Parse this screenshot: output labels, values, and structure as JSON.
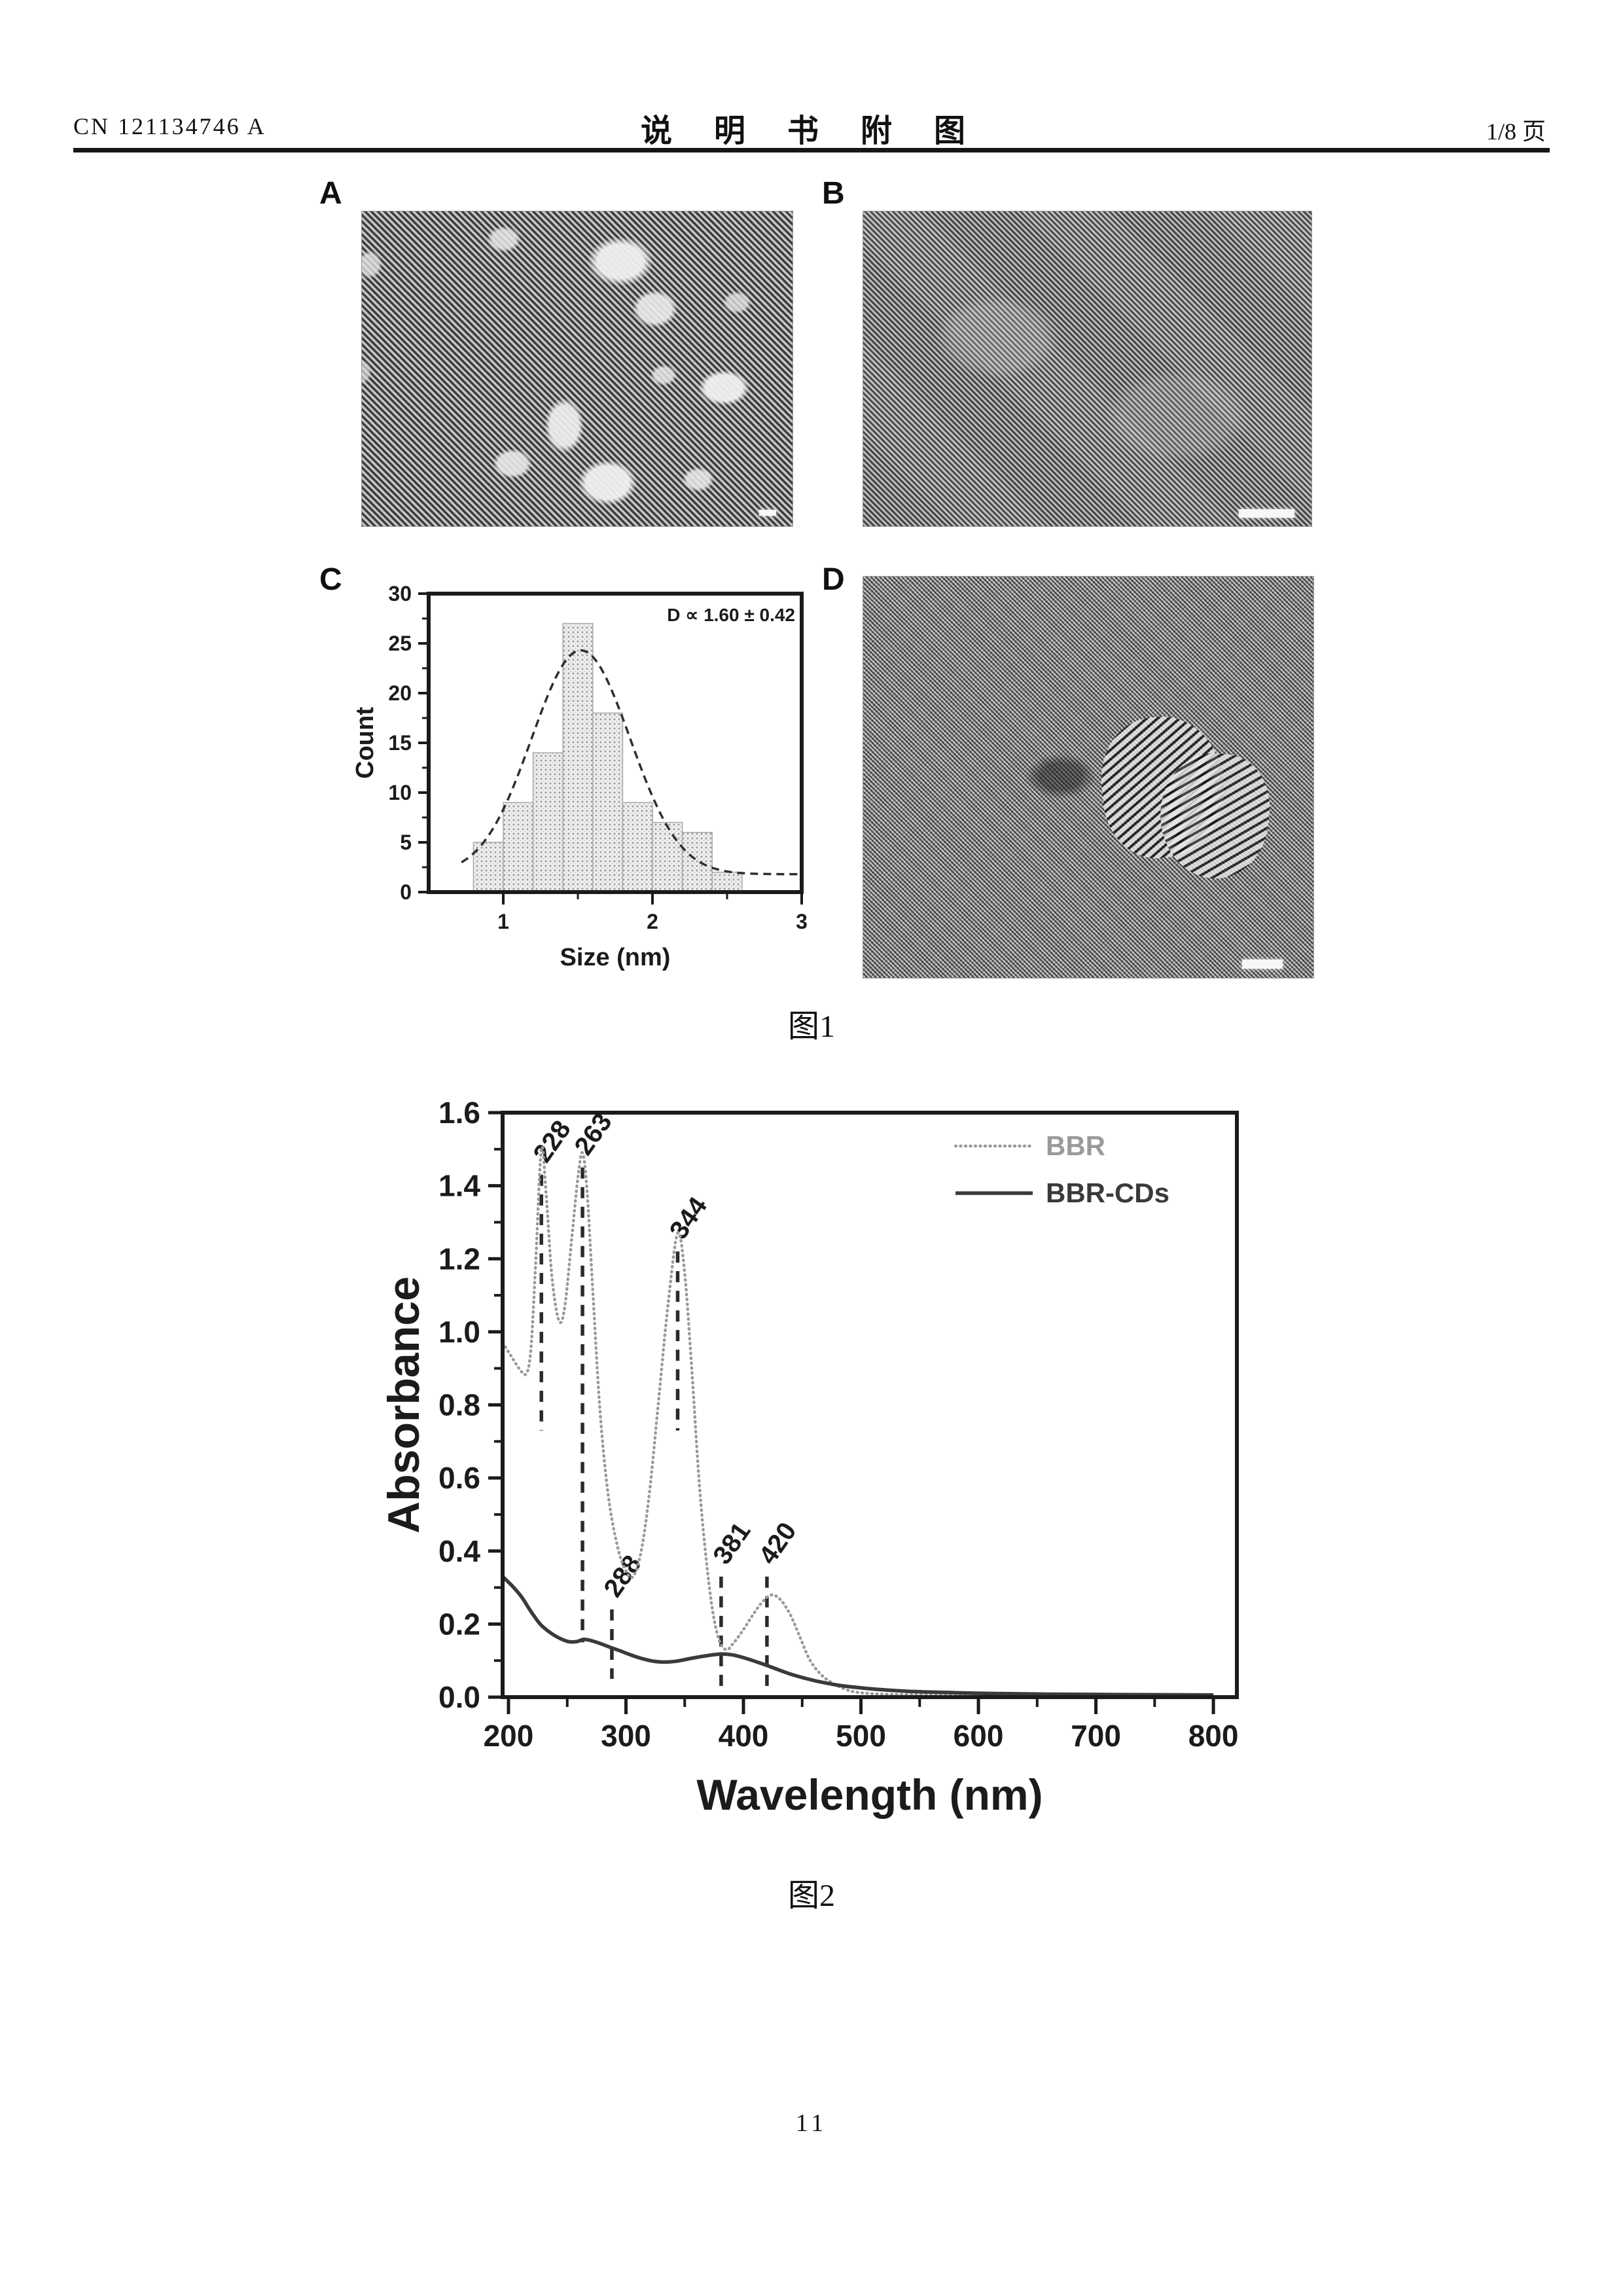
{
  "header": {
    "patent_number": "CN 121134746 A",
    "title": "说 明 书 附 图",
    "page_indicator": "1/8 页"
  },
  "figure1": {
    "caption": "图1",
    "panels": [
      {
        "label": "A"
      },
      {
        "label": "B"
      },
      {
        "label": "C"
      },
      {
        "label": "D"
      }
    ]
  },
  "figure2": {
    "caption": "图2"
  },
  "page_number": "11",
  "colors": {
    "ink": "#1b1b1b",
    "bbr_series": "#9a9a9a",
    "bbr_cds_series": "#3a3a3a",
    "bar_fill_bg": "#efefef",
    "bar_dot": "#9b9b9b"
  },
  "chart_data": [
    {
      "id": "size_histogram",
      "type": "bar",
      "title": "",
      "xlabel": "Size (nm)",
      "ylabel": "Count",
      "annotation": "D ∝ 1.60 ± 0.42",
      "xlim": [
        0.5,
        3.0
      ],
      "ylim": [
        0,
        30
      ],
      "x_ticks": [
        1,
        2,
        3
      ],
      "x_minor_ticks": [
        1.5,
        2.5
      ],
      "y_ticks": [
        0,
        5,
        10,
        15,
        20,
        25,
        30
      ],
      "bin_start": 0.8,
      "bin_width": 0.2,
      "counts": [
        5,
        9,
        14,
        27,
        18,
        9,
        7,
        6,
        2
      ],
      "fit_curve": {
        "shape": "gaussian",
        "amplitude": 22.5,
        "mean": 1.52,
        "sigma": 0.33,
        "offset": 1.8
      },
      "grid": false,
      "legend_position": "none"
    },
    {
      "id": "uv_vis_spectrum",
      "type": "line",
      "title": "",
      "xlabel": "Wavelength (nm)",
      "ylabel": "Absorbance",
      "xlim": [
        195,
        820
      ],
      "ylim": [
        0,
        1.6
      ],
      "x_ticks": [
        200,
        300,
        400,
        500,
        600,
        700,
        800
      ],
      "y_tick_labels": [
        "0.0",
        "0.2",
        "0.4",
        "0.6",
        "0.8",
        "1.0",
        "1.2",
        "1.4",
        "1.6"
      ],
      "grid": false,
      "legend_position": "upper right",
      "legend": [
        "BBR",
        "BBR-CDs"
      ],
      "peak_markers": [
        {
          "label": "228",
          "x": 228,
          "line_top": 1.43,
          "line_bottom": 0.73
        },
        {
          "label": "263",
          "x": 263,
          "line_top": 1.45,
          "line_bottom": 0.15
        },
        {
          "label": "288",
          "x": 288,
          "line_top": 0.24,
          "line_bottom": 0.05
        },
        {
          "label": "344",
          "x": 344,
          "line_top": 1.22,
          "line_bottom": 0.73
        },
        {
          "label": "381",
          "x": 381,
          "line_top": 0.33,
          "line_bottom": 0.03
        },
        {
          "label": "420",
          "x": 420,
          "line_top": 0.33,
          "line_bottom": 0.03
        }
      ],
      "series": [
        {
          "name": "BBR",
          "style": "dotted",
          "color": "#9a9a9a",
          "points": [
            [
              195,
              0.97
            ],
            [
              202,
              0.935
            ],
            [
              209,
              0.9
            ],
            [
              215,
              0.885
            ],
            [
              219,
              0.95
            ],
            [
              223,
              1.18
            ],
            [
              228,
              1.5
            ],
            [
              232,
              1.38
            ],
            [
              237,
              1.15
            ],
            [
              243,
              1.03
            ],
            [
              248,
              1.07
            ],
            [
              254,
              1.26
            ],
            [
              259,
              1.42
            ],
            [
              263,
              1.49
            ],
            [
              267,
              1.38
            ],
            [
              272,
              1.1
            ],
            [
              278,
              0.78
            ],
            [
              285,
              0.55
            ],
            [
              293,
              0.41
            ],
            [
              300,
              0.345
            ],
            [
              306,
              0.33
            ],
            [
              313,
              0.4
            ],
            [
              320,
              0.56
            ],
            [
              328,
              0.82
            ],
            [
              336,
              1.08
            ],
            [
              344,
              1.27
            ],
            [
              350,
              1.16
            ],
            [
              356,
              0.9
            ],
            [
              363,
              0.56
            ],
            [
              371,
              0.3
            ],
            [
              378,
              0.17
            ],
            [
              385,
              0.13
            ],
            [
              392,
              0.15
            ],
            [
              400,
              0.185
            ],
            [
              408,
              0.225
            ],
            [
              416,
              0.26
            ],
            [
              424,
              0.28
            ],
            [
              432,
              0.265
            ],
            [
              440,
              0.225
            ],
            [
              448,
              0.165
            ],
            [
              456,
              0.105
            ],
            [
              465,
              0.065
            ],
            [
              475,
              0.04
            ],
            [
              488,
              0.02
            ],
            [
              500,
              0.012
            ],
            [
              520,
              0.008
            ],
            [
              560,
              0.006
            ],
            [
              620,
              0.005
            ],
            [
              700,
              0.005
            ],
            [
              800,
              0.005
            ]
          ]
        },
        {
          "name": "BBR-CDs",
          "style": "solid",
          "color": "#3a3a3a",
          "points": [
            [
              195,
              0.33
            ],
            [
              203,
              0.305
            ],
            [
              211,
              0.275
            ],
            [
              219,
              0.235
            ],
            [
              227,
              0.2
            ],
            [
              235,
              0.178
            ],
            [
              243,
              0.162
            ],
            [
              251,
              0.152
            ],
            [
              258,
              0.152
            ],
            [
              264,
              0.158
            ],
            [
              270,
              0.155
            ],
            [
              278,
              0.147
            ],
            [
              286,
              0.137
            ],
            [
              294,
              0.128
            ],
            [
              302,
              0.118
            ],
            [
              312,
              0.107
            ],
            [
              322,
              0.099
            ],
            [
              332,
              0.096
            ],
            [
              342,
              0.098
            ],
            [
              352,
              0.104
            ],
            [
              362,
              0.11
            ],
            [
              372,
              0.115
            ],
            [
              381,
              0.118
            ],
            [
              390,
              0.116
            ],
            [
              398,
              0.11
            ],
            [
              408,
              0.1
            ],
            [
              418,
              0.089
            ],
            [
              428,
              0.077
            ],
            [
              440,
              0.063
            ],
            [
              452,
              0.052
            ],
            [
              465,
              0.042
            ],
            [
              480,
              0.033
            ],
            [
              495,
              0.027
            ],
            [
              515,
              0.021
            ],
            [
              540,
              0.016
            ],
            [
              570,
              0.013
            ],
            [
              610,
              0.01
            ],
            [
              660,
              0.008
            ],
            [
              720,
              0.007
            ],
            [
              800,
              0.006
            ]
          ]
        }
      ]
    }
  ]
}
